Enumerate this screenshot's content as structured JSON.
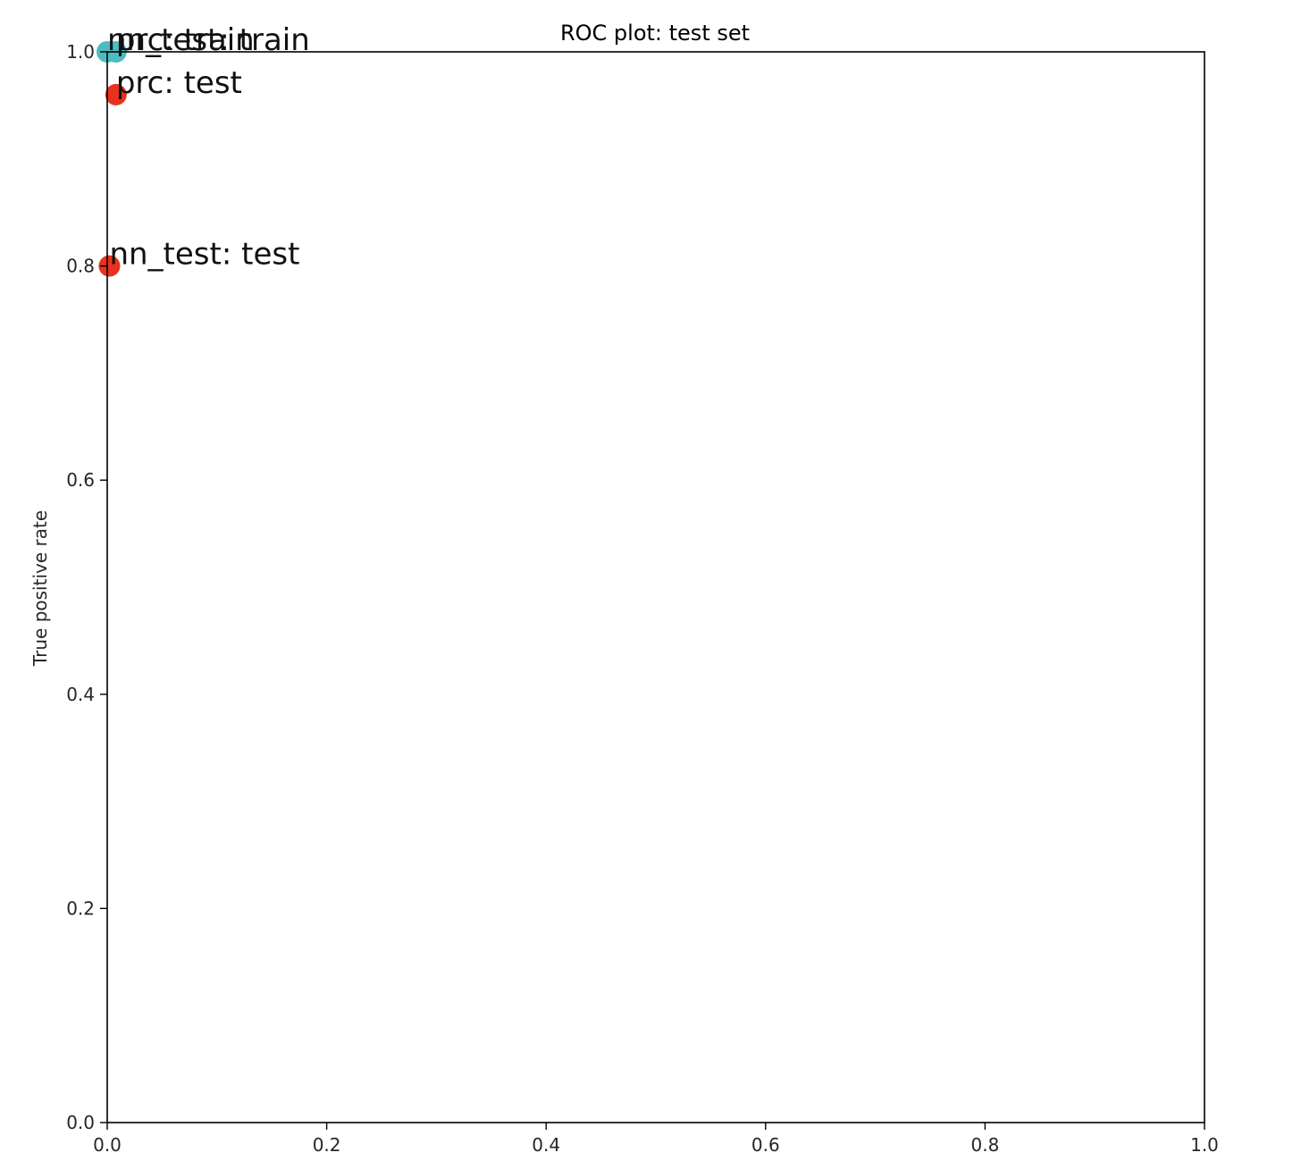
{
  "chart_data": {
    "type": "scatter",
    "title": "ROC plot: test set",
    "xlabel": "",
    "ylabel": "True positive rate",
    "xlim": [
      0.0,
      1.0
    ],
    "ylim": [
      0.0,
      1.0
    ],
    "xticks": [
      "0.0",
      "0.2",
      "0.4",
      "0.6",
      "0.8",
      "1.0"
    ],
    "yticks": [
      "0.0",
      "0.2",
      "0.4",
      "0.6",
      "0.8",
      "1.0"
    ],
    "grid": false,
    "points": [
      {
        "x": 0.008,
        "y": 1.0,
        "label": "prc: train",
        "color": "#4bbcc0"
      },
      {
        "x": 0.0,
        "y": 1.0,
        "label": "nn_test: train",
        "color": "#4bbcc0"
      },
      {
        "x": 0.008,
        "y": 0.96,
        "label": "prc: test",
        "color": "#e8321e"
      },
      {
        "x": 0.002,
        "y": 0.8,
        "label": "nn_test: test",
        "color": "#e8321e"
      }
    ]
  }
}
